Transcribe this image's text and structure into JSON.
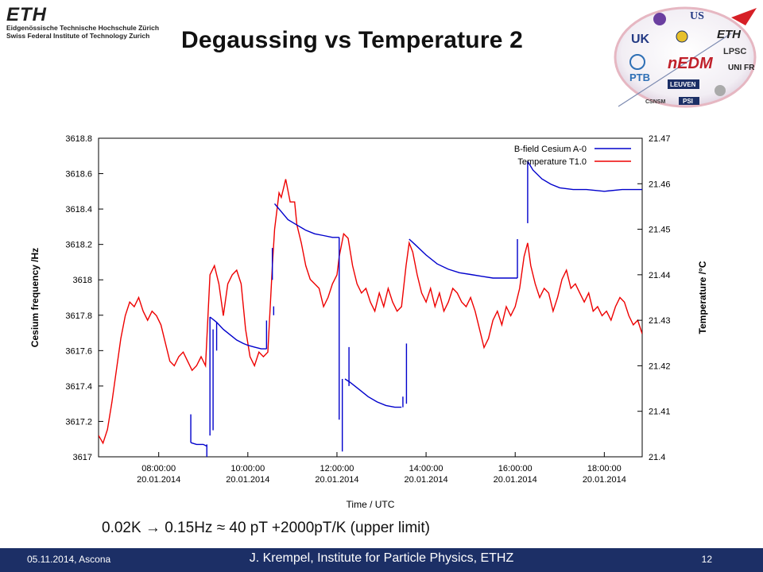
{
  "header": {
    "logo_mark": "ETH",
    "logo_line1": "Eidgenössische Technische Hochschule Zürich",
    "logo_line2": "Swiss Federal Institute of Technology Zurich",
    "title": "Degaussing vs Temperature 2"
  },
  "partners": {
    "labels": [
      "UK",
      "US",
      "ETH",
      "nEDM",
      "PTB",
      "LEUVEN",
      "PSI",
      "LPSC",
      "UNI FR",
      "CSNSM"
    ]
  },
  "chart_data": {
    "type": "line",
    "ylabel": "Cesium frequency /Hz",
    "y2label": "Temperature /°C",
    "xlabel": "Time / UTC",
    "xlim": [
      6.65,
      18.85
    ],
    "ylim": [
      3617.0,
      3618.8
    ],
    "y2lim": [
      21.4,
      21.47
    ],
    "grid": false,
    "legend_position": "top-right",
    "yticks": [
      "3617",
      "3617.2",
      "3617.4",
      "3617.6",
      "3617.8",
      "3618",
      "3618.2",
      "3618.4",
      "3618.6",
      "3618.8"
    ],
    "y2ticks": [
      "21.4",
      "21.41",
      "21.42",
      "21.43",
      "21.44",
      "21.45",
      "21.46",
      "21.47"
    ],
    "xticks": [
      {
        "x": 8,
        "time": "08:00:00",
        "date": "20.01.2014"
      },
      {
        "x": 10,
        "time": "10:00:00",
        "date": "20.01.2014"
      },
      {
        "x": 12,
        "time": "12:00:00",
        "date": "20.01.2014"
      },
      {
        "x": 14,
        "time": "14:00:00",
        "date": "20.01.2014"
      },
      {
        "x": 16,
        "time": "16:00:00",
        "date": "20.01.2014"
      },
      {
        "x": 18,
        "time": "18:00:00",
        "date": "20.01.2014"
      }
    ],
    "series": [
      {
        "name": "B-field Cesium A-0",
        "color": "#0000cc",
        "axis": "left",
        "segments": [
          [
            [
              8.72,
              3617.08
            ],
            [
              8.85,
              3617.07
            ],
            [
              9.0,
              3617.07
            ],
            [
              9.08,
              3617.06
            ]
          ],
          [
            [
              9.15,
              3617.79
            ],
            [
              9.3,
              3617.76
            ],
            [
              9.45,
              3617.72
            ],
            [
              9.6,
              3617.69
            ],
            [
              9.75,
              3617.66
            ],
            [
              9.9,
              3617.64
            ],
            [
              10.0,
              3617.63
            ],
            [
              10.15,
              3617.62
            ],
            [
              10.3,
              3617.61
            ],
            [
              10.42,
              3617.61
            ]
          ],
          [
            [
              10.6,
              3618.43
            ],
            [
              10.7,
              3618.4
            ],
            [
              10.9,
              3618.34
            ],
            [
              11.1,
              3618.31
            ],
            [
              11.3,
              3618.28
            ],
            [
              11.5,
              3618.26
            ],
            [
              11.7,
              3618.25
            ],
            [
              11.9,
              3618.24
            ],
            [
              12.05,
              3618.24
            ]
          ],
          [
            [
              12.18,
              3617.44
            ],
            [
              12.3,
              3617.42
            ],
            [
              12.5,
              3617.38
            ],
            [
              12.7,
              3617.34
            ],
            [
              12.9,
              3617.31
            ],
            [
              13.1,
              3617.29
            ],
            [
              13.3,
              3617.28
            ],
            [
              13.45,
              3617.28
            ]
          ],
          [
            [
              13.62,
              3618.23
            ],
            [
              13.75,
              3618.2
            ],
            [
              14.0,
              3618.14
            ],
            [
              14.25,
              3618.09
            ],
            [
              14.5,
              3618.06
            ],
            [
              14.75,
              3618.04
            ],
            [
              15.0,
              3618.03
            ],
            [
              15.25,
              3618.02
            ],
            [
              15.5,
              3618.01
            ],
            [
              15.75,
              3618.01
            ],
            [
              16.0,
              3618.01
            ],
            [
              16.05,
              3618.01
            ]
          ],
          [
            [
              16.28,
              3618.67
            ],
            [
              16.4,
              3618.62
            ],
            [
              16.6,
              3618.57
            ],
            [
              16.8,
              3618.54
            ],
            [
              17.0,
              3618.52
            ],
            [
              17.3,
              3618.51
            ],
            [
              17.6,
              3618.51
            ],
            [
              18.0,
              3618.5
            ],
            [
              18.4,
              3618.51
            ],
            [
              18.85,
              3618.51
            ]
          ]
        ],
        "spikes": [
          [
            8.72,
            3617.08,
            3617.24
          ],
          [
            9.08,
            3617.0,
            3617.07
          ],
          [
            9.15,
            3617.12,
            3617.79
          ],
          [
            9.22,
            3617.15,
            3617.72
          ],
          [
            9.3,
            3617.6,
            3617.76
          ],
          [
            10.42,
            3617.61,
            3617.77
          ],
          [
            10.55,
            3618.0,
            3618.18
          ],
          [
            10.58,
            3617.8,
            3617.85
          ],
          [
            12.05,
            3617.21,
            3618.24
          ],
          [
            12.12,
            3617.03,
            3617.44
          ],
          [
            12.27,
            3617.4,
            3617.62
          ],
          [
            13.48,
            3617.34,
            3617.28
          ],
          [
            13.56,
            3617.3,
            3617.64
          ],
          [
            16.05,
            3618.01,
            3618.23
          ],
          [
            16.28,
            3618.32,
            3618.67
          ]
        ]
      },
      {
        "name": "Temperature T1.0",
        "color": "#ee0000",
        "axis": "right",
        "points": [
          [
            6.65,
            21.4047
          ],
          [
            6.75,
            21.403
          ],
          [
            6.85,
            21.406
          ],
          [
            6.95,
            21.412
          ],
          [
            7.05,
            21.419
          ],
          [
            7.15,
            21.426
          ],
          [
            7.25,
            21.431
          ],
          [
            7.35,
            21.434
          ],
          [
            7.45,
            21.433
          ],
          [
            7.55,
            21.435
          ],
          [
            7.65,
            21.432
          ],
          [
            7.75,
            21.43
          ],
          [
            7.85,
            21.432
          ],
          [
            7.95,
            21.431
          ],
          [
            8.05,
            21.429
          ],
          [
            8.15,
            21.425
          ],
          [
            8.25,
            21.421
          ],
          [
            8.35,
            21.42
          ],
          [
            8.45,
            21.422
          ],
          [
            8.55,
            21.423
          ],
          [
            8.65,
            21.421
          ],
          [
            8.75,
            21.419
          ],
          [
            8.85,
            21.42
          ],
          [
            8.95,
            21.422
          ],
          [
            9.05,
            21.42
          ],
          [
            9.1,
            21.43
          ],
          [
            9.15,
            21.44
          ],
          [
            9.25,
            21.442
          ],
          [
            9.35,
            21.438
          ],
          [
            9.45,
            21.431
          ],
          [
            9.55,
            21.438
          ],
          [
            9.65,
            21.44
          ],
          [
            9.75,
            21.441
          ],
          [
            9.85,
            21.438
          ],
          [
            9.95,
            21.428
          ],
          [
            10.05,
            21.422
          ],
          [
            10.15,
            21.42
          ],
          [
            10.25,
            21.423
          ],
          [
            10.35,
            21.422
          ],
          [
            10.45,
            21.423
          ],
          [
            10.55,
            21.442
          ],
          [
            10.6,
            21.45
          ],
          [
            10.7,
            21.458
          ],
          [
            10.75,
            21.457
          ],
          [
            10.85,
            21.461
          ],
          [
            10.95,
            21.456
          ],
          [
            11.05,
            21.456
          ],
          [
            11.1,
            21.451
          ],
          [
            11.2,
            21.447
          ],
          [
            11.3,
            21.442
          ],
          [
            11.4,
            21.439
          ],
          [
            11.5,
            21.438
          ],
          [
            11.6,
            21.437
          ],
          [
            11.7,
            21.433
          ],
          [
            11.8,
            21.435
          ],
          [
            11.9,
            21.438
          ],
          [
            12.0,
            21.44
          ],
          [
            12.05,
            21.444
          ],
          [
            12.15,
            21.449
          ],
          [
            12.25,
            21.448
          ],
          [
            12.35,
            21.442
          ],
          [
            12.45,
            21.438
          ],
          [
            12.55,
            21.436
          ],
          [
            12.65,
            21.437
          ],
          [
            12.75,
            21.434
          ],
          [
            12.85,
            21.432
          ],
          [
            12.95,
            21.436
          ],
          [
            13.05,
            21.433
          ],
          [
            13.15,
            21.437
          ],
          [
            13.25,
            21.434
          ],
          [
            13.35,
            21.432
          ],
          [
            13.45,
            21.433
          ],
          [
            13.55,
            21.442
          ],
          [
            13.62,
            21.447
          ],
          [
            13.7,
            21.445
          ],
          [
            13.8,
            21.44
          ],
          [
            13.9,
            21.436
          ],
          [
            14.0,
            21.434
          ],
          [
            14.1,
            21.437
          ],
          [
            14.2,
            21.433
          ],
          [
            14.3,
            21.436
          ],
          [
            14.4,
            21.432
          ],
          [
            14.5,
            21.434
          ],
          [
            14.6,
            21.437
          ],
          [
            14.7,
            21.436
          ],
          [
            14.8,
            21.434
          ],
          [
            14.9,
            21.433
          ],
          [
            15.0,
            21.435
          ],
          [
            15.1,
            21.432
          ],
          [
            15.2,
            21.428
          ],
          [
            15.3,
            21.424
          ],
          [
            15.4,
            21.426
          ],
          [
            15.5,
            21.43
          ],
          [
            15.6,
            21.432
          ],
          [
            15.7,
            21.429
          ],
          [
            15.8,
            21.433
          ],
          [
            15.9,
            21.431
          ],
          [
            16.0,
            21.433
          ],
          [
            16.1,
            21.437
          ],
          [
            16.2,
            21.444
          ],
          [
            16.28,
            21.447
          ],
          [
            16.35,
            21.442
          ],
          [
            16.45,
            21.438
          ],
          [
            16.55,
            21.435
          ],
          [
            16.65,
            21.437
          ],
          [
            16.75,
            21.436
          ],
          [
            16.85,
            21.432
          ],
          [
            16.95,
            21.435
          ],
          [
            17.05,
            21.439
          ],
          [
            17.15,
            21.441
          ],
          [
            17.25,
            21.437
          ],
          [
            17.35,
            21.438
          ],
          [
            17.45,
            21.436
          ],
          [
            17.55,
            21.434
          ],
          [
            17.65,
            21.436
          ],
          [
            17.75,
            21.432
          ],
          [
            17.85,
            21.433
          ],
          [
            17.95,
            21.431
          ],
          [
            18.05,
            21.432
          ],
          [
            18.15,
            21.43
          ],
          [
            18.25,
            21.433
          ],
          [
            18.35,
            21.435
          ],
          [
            18.45,
            21.434
          ],
          [
            18.55,
            21.431
          ],
          [
            18.65,
            21.429
          ],
          [
            18.75,
            21.43
          ],
          [
            18.85,
            21.427
          ]
        ]
      }
    ]
  },
  "note": "0.02K  →  0.15Hz  ≈  40 pT     +2000pT/K  (upper limit)",
  "footer": {
    "date": "05.11.2014, Ascona",
    "author": "J. Krempel, Institute for Particle Physics, ETHZ",
    "page": "12"
  }
}
